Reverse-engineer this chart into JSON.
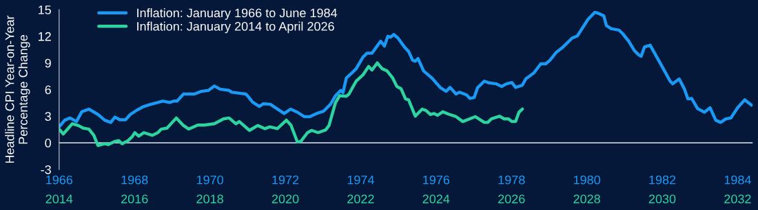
{
  "chart_data": {
    "type": "line",
    "ylabel": "Headline CPI Year-on-Year\nPercentage Change",
    "xlim": [
      1966,
      1984.4
    ],
    "xticks": [
      1966,
      1968,
      1970,
      1972,
      1974,
      1976,
      1978,
      1980,
      1982,
      1984
    ],
    "x2lim": [
      2014,
      2032.4
    ],
    "x2ticks": [
      2014,
      2016,
      2018,
      2020,
      2022,
      2024,
      2026,
      2028,
      2030,
      2032
    ],
    "ylim": [
      -3,
      15
    ],
    "yticks": [
      -3,
      0,
      3,
      6,
      9,
      12,
      15
    ],
    "grid": false,
    "legend": "top left",
    "marker": "none",
    "line_style": "solid",
    "ref_lines": [
      {
        "axis": "y",
        "value": 0,
        "color": "#c8ccd4"
      }
    ],
    "series": [
      {
        "name": "Inflation: January 1966 to June 1984",
        "color": "#1a9af5",
        "x": [
          1966.0,
          1966.15,
          1966.29,
          1966.46,
          1966.6,
          1966.79,
          1967.03,
          1967.21,
          1967.37,
          1967.48,
          1967.61,
          1967.76,
          1967.89,
          1968.07,
          1968.25,
          1968.44,
          1968.58,
          1968.75,
          1968.93,
          1969.04,
          1969.13,
          1969.3,
          1969.59,
          1969.77,
          1969.96,
          1970.12,
          1970.27,
          1970.51,
          1970.58,
          1970.95,
          1971.0,
          1971.13,
          1971.31,
          1971.42,
          1971.6,
          1971.97,
          1972.14,
          1972.32,
          1972.5,
          1972.65,
          1972.83,
          1973.01,
          1973.2,
          1973.33,
          1973.47,
          1973.53,
          1973.62,
          1973.75,
          1973.88,
          1974.06,
          1974.17,
          1974.3,
          1974.42,
          1974.53,
          1974.63,
          1974.72,
          1974.79,
          1974.88,
          1974.99,
          1975.16,
          1975.27,
          1975.38,
          1975.45,
          1975.52,
          1975.67,
          1975.89,
          1976.12,
          1976.27,
          1976.37,
          1976.53,
          1976.62,
          1976.81,
          1976.9,
          1977.01,
          1977.1,
          1977.28,
          1977.41,
          1977.59,
          1977.74,
          1977.87,
          1978.01,
          1978.11,
          1978.29,
          1978.38,
          1978.6,
          1978.78,
          1978.91,
          1979.02,
          1979.19,
          1979.37,
          1979.61,
          1979.75,
          1980.03,
          1980.21,
          1980.3,
          1980.45,
          1980.52,
          1980.65,
          1980.85,
          1980.95,
          1981.11,
          1981.26,
          1981.38,
          1981.44,
          1981.53,
          1981.68,
          1981.93,
          1982.21,
          1982.28,
          1982.45,
          1982.59,
          1982.68,
          1982.78,
          1982.94,
          1983.12,
          1983.27,
          1983.42,
          1983.55,
          1983.69,
          1983.82,
          1984.0,
          1984.19,
          1984.37
        ],
        "values": [
          1.8,
          2.55,
          2.8,
          2.4,
          3.5,
          3.8,
          3.2,
          2.55,
          2.3,
          2.9,
          2.6,
          2.6,
          3.2,
          3.7,
          4.1,
          4.35,
          4.5,
          4.7,
          4.55,
          4.7,
          4.7,
          5.5,
          5.5,
          5.8,
          5.9,
          6.4,
          6.05,
          5.9,
          5.7,
          5.5,
          5.3,
          4.6,
          4.1,
          4.4,
          4.35,
          3.3,
          3.8,
          3.45,
          2.95,
          2.95,
          3.3,
          3.55,
          4.35,
          5.3,
          5.9,
          5.65,
          7.3,
          7.8,
          8.35,
          9.65,
          10.1,
          10.1,
          10.8,
          11.45,
          10.9,
          12.0,
          11.9,
          12.2,
          11.8,
          10.8,
          10.3,
          9.3,
          9.2,
          9.5,
          8.1,
          7.3,
          6.2,
          5.8,
          6.25,
          5.5,
          5.7,
          5.4,
          5.0,
          5.1,
          6.2,
          6.95,
          6.75,
          6.65,
          6.35,
          6.65,
          6.8,
          6.25,
          6.5,
          7.2,
          7.9,
          8.9,
          8.9,
          9.3,
          10.2,
          10.8,
          11.8,
          12.05,
          13.9,
          14.7,
          14.6,
          14.3,
          13.2,
          12.85,
          12.7,
          12.3,
          11.45,
          10.4,
          9.9,
          9.75,
          10.8,
          11.0,
          9.1,
          6.95,
          6.65,
          7.2,
          6.05,
          4.95,
          5.0,
          3.85,
          3.45,
          3.95,
          2.55,
          2.3,
          2.7,
          2.8,
          3.95,
          4.85,
          4.25
        ]
      },
      {
        "name": "Inflation: January 2014 to April 2026",
        "color": "#2dd4a0",
        "axis": "x2",
        "x": [
          2014.0,
          2014.11,
          2014.35,
          2014.51,
          2014.64,
          2014.79,
          2014.92,
          2015.03,
          2015.21,
          2015.3,
          2015.47,
          2015.58,
          2015.67,
          2015.83,
          2015.94,
          2016.01,
          2016.11,
          2016.25,
          2016.47,
          2016.62,
          2016.71,
          2016.86,
          2017.11,
          2017.3,
          2017.44,
          2017.68,
          2017.85,
          2018.12,
          2018.36,
          2018.51,
          2018.69,
          2018.78,
          2019.05,
          2019.27,
          2019.46,
          2019.59,
          2019.79,
          2020.03,
          2020.15,
          2020.32,
          2020.41,
          2020.59,
          2020.7,
          2020.87,
          2021.07,
          2021.16,
          2021.33,
          2021.44,
          2021.62,
          2021.69,
          2021.88,
          2022.06,
          2022.21,
          2022.3,
          2022.44,
          2022.57,
          2022.7,
          2022.85,
          2022.96,
          2023.07,
          2023.19,
          2023.27,
          2023.45,
          2023.63,
          2023.73,
          2023.85,
          2023.95,
          2024.04,
          2024.18,
          2024.35,
          2024.53,
          2024.71,
          2025.04,
          2025.28,
          2025.37,
          2025.47,
          2025.68,
          2025.81,
          2025.92,
          2026.01,
          2026.11,
          2026.2,
          2026.29
        ],
        "values": [
          1.55,
          1.0,
          2.15,
          1.95,
          1.65,
          1.55,
          0.85,
          -0.3,
          -0.1,
          -0.2,
          0.15,
          0.25,
          -0.1,
          0.25,
          0.7,
          1.15,
          0.75,
          1.15,
          0.85,
          1.15,
          1.55,
          1.65,
          2.8,
          1.95,
          1.55,
          2.0,
          2.0,
          2.15,
          2.7,
          2.8,
          2.15,
          2.4,
          1.4,
          1.95,
          1.6,
          1.8,
          1.6,
          2.55,
          2.0,
          0.1,
          0.15,
          1.15,
          1.4,
          1.15,
          1.45,
          1.95,
          4.5,
          5.3,
          5.25,
          5.5,
          6.95,
          7.65,
          8.6,
          8.2,
          9.0,
          8.35,
          8.1,
          7.3,
          6.35,
          6.1,
          4.95,
          4.85,
          3.0,
          3.8,
          3.65,
          3.2,
          3.3,
          3.1,
          3.5,
          3.2,
          2.95,
          2.4,
          2.95,
          2.3,
          2.3,
          2.7,
          3.0,
          2.7,
          2.7,
          2.4,
          2.4,
          3.45,
          3.8
        ]
      }
    ]
  }
}
